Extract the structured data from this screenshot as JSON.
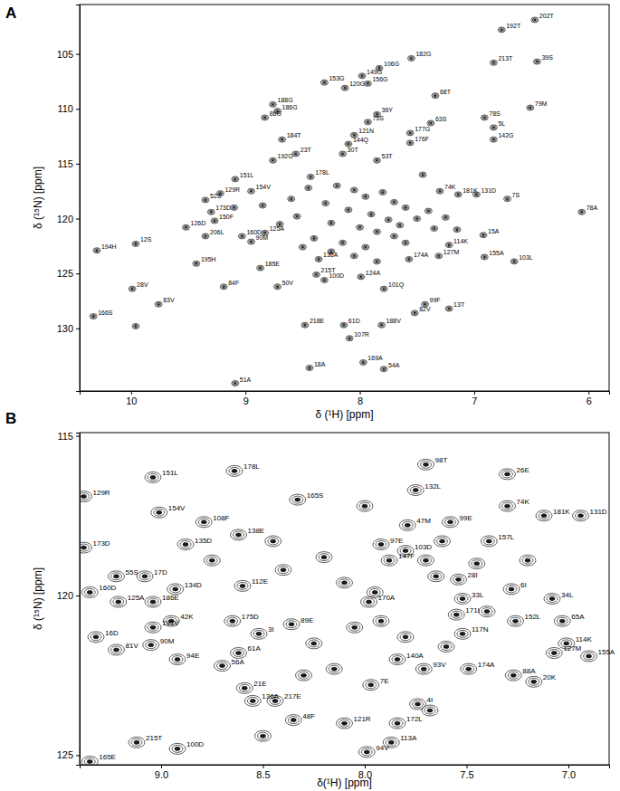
{
  "chart_data": [
    {
      "type": "scatter",
      "title": "A",
      "x_label": "δ (¹H) [ppm]",
      "y_label": "δ (¹⁵N) [ppm]",
      "marker": "contour",
      "color": "#1a1a1a",
      "xlim": [
        10.45,
        5.82
      ],
      "ylim": [
        100.5,
        135.7
      ],
      "xticks": [
        10,
        9,
        8,
        7,
        6
      ],
      "yticks": [
        105,
        110,
        115,
        120,
        125,
        130
      ],
      "x": [
        6.76,
        6.47,
        6.83,
        6.45,
        7.55,
        7.98,
        7.83,
        7.93,
        8.31,
        8.13,
        7.34,
        8.76,
        8.83,
        8.72,
        6.51,
        7.85,
        7.93,
        7.38,
        6.91,
        6.83,
        8.05,
        8.1,
        8.15,
        8.56,
        8.68,
        8.76,
        7.56,
        7.56,
        6.83,
        7.85,
        9.09,
        8.43,
        8.95,
        9.35,
        9.22,
        9.3,
        7.3,
        7.14,
        6.98,
        6.71,
        9.52,
        9.27,
        9.35,
        9.96,
        6.06,
        6.92,
        6.91,
        6.65,
        7.31,
        7.22,
        7.57,
        10.3,
        9.43,
        8.87,
        9.19,
        9.99,
        9.76,
        8.72,
        10.33,
        9.09,
        8.38,
        8.31,
        8.36,
        7.99,
        7.79,
        8.48,
        8.14,
        7.81,
        8.09,
        7.43,
        7.52,
        7.22,
        8.44,
        7.97,
        7.79,
        9.03,
        8.95,
        8.83,
        8.2,
        8.05,
        7.95,
        7.8,
        7.7,
        7.6,
        8.3,
        8.1,
        7.9,
        7.75,
        7.65,
        7.5,
        8.25,
        8.0,
        7.85,
        7.7,
        8.4,
        8.15,
        7.95,
        8.55,
        8.6,
        8.45,
        7.4,
        7.35,
        8.7,
        8.05,
        7.85,
        8.25,
        7.6,
        8.5,
        9.1,
        9.96,
        8.85,
        7.45,
        7.25,
        7.15
      ],
      "values": [
        102.8,
        101.9,
        105.8,
        105.7,
        105.4,
        107.0,
        106.3,
        107.7,
        107.6,
        108.1,
        108.8,
        109.6,
        110.8,
        110.2,
        109.9,
        110.5,
        111.2,
        111.3,
        110.8,
        111.7,
        112.4,
        113.2,
        114.1,
        114.1,
        112.8,
        114.7,
        112.2,
        113.1,
        112.8,
        114.7,
        116.4,
        116.2,
        117.5,
        118.3,
        117.7,
        119.4,
        117.5,
        117.8,
        117.8,
        118.2,
        120.8,
        120.2,
        121.6,
        122.3,
        119.4,
        121.5,
        123.5,
        123.9,
        123.4,
        122.4,
        123.7,
        122.9,
        124.1,
        124.5,
        126.2,
        126.4,
        127.8,
        126.2,
        128.9,
        135.0,
        125.1,
        125.6,
        123.7,
        125.3,
        126.4,
        129.7,
        129.7,
        129.7,
        130.9,
        127.8,
        128.6,
        128.2,
        133.6,
        133.1,
        133.7,
        121.6,
        122.1,
        121.3,
        117.0,
        117.4,
        118.0,
        117.6,
        118.5,
        119.0,
        118.6,
        119.2,
        119.6,
        120.1,
        120.6,
        120.0,
        120.4,
        120.8,
        121.2,
        121.6,
        121.8,
        122.2,
        122.6,
        119.8,
        118.2,
        117.2,
        119.3,
        120.9,
        120.5,
        123.4,
        123.9,
        123.0,
        122.2,
        122.6,
        119.0,
        129.8,
        118.8,
        116.0,
        119.9,
        121.0
      ],
      "labels": [
        "192T",
        "202T",
        "213T",
        "39S",
        "182G",
        "149G",
        "106G",
        "156G",
        "153G",
        "120G",
        "68T",
        "188G",
        "86G",
        "186G",
        "79M",
        "36Y",
        "75S",
        "63S",
        "78S",
        "5L",
        "121N",
        "144Q",
        "30T",
        "23T",
        "184T",
        "192G",
        "177G",
        "176F",
        "142G",
        "53T",
        "151L",
        "178L",
        "154V",
        "52S",
        "129R",
        "173D",
        "74K",
        "181K",
        "131D",
        "7S",
        "126D",
        "150F",
        "206L",
        "12S",
        "78A",
        "15A",
        "155A",
        "103L",
        "127M",
        "114K",
        "174A",
        "194H",
        "195H",
        "185E",
        "84F",
        "28V",
        "83V",
        "50V",
        "166S",
        "51A",
        "215T",
        "100D",
        "136A",
        "124A",
        "101Q",
        "218E",
        "61D",
        "188V",
        "107R",
        "99F",
        "82V",
        "13T",
        "18A",
        "169A",
        "54A",
        "160D",
        "90M",
        "125A",
        null,
        null,
        null,
        null,
        null,
        null,
        null,
        null,
        null,
        null,
        null,
        null,
        null,
        null,
        null,
        null,
        null,
        null,
        null,
        null,
        null,
        null,
        null,
        null,
        null,
        null,
        null,
        null,
        null,
        null,
        null,
        null,
        null,
        null,
        null,
        null
      ]
    },
    {
      "type": "scatter",
      "title": "B",
      "x_label": "δ(¹H) [ppm]",
      "y_label": "δ (¹⁵N) [ppm]",
      "marker": "contour",
      "color": "#1a1a1a",
      "xlim": [
        9.4,
        6.8
      ],
      "ylim": [
        114.9,
        125.3
      ],
      "xticks": [
        {
          "value": 9,
          "label": "9.0"
        },
        {
          "value": 8.5,
          "label": "8.5"
        },
        {
          "value": 8,
          "label": "8.0"
        },
        {
          "value": 7.5,
          "label": "7.5"
        },
        {
          "value": 7,
          "label": "7.0"
        }
      ],
      "yticks": [
        115,
        120,
        125
      ],
      "x": [
        9.04,
        8.64,
        7.7,
        7.3,
        9.38,
        9.01,
        8.33,
        7.75,
        7.3,
        7.12,
        6.94,
        8.79,
        8.62,
        8.88,
        9.38,
        9.22,
        9.08,
        8.93,
        8.6,
        9.04,
        9.21,
        9.35,
        8.95,
        9.04,
        9.32,
        9.22,
        9.05,
        8.92,
        8.7,
        8.62,
        8.52,
        8.65,
        8.36,
        8.59,
        8.55,
        8.44,
        8.35,
        7.97,
        8.1,
        7.84,
        7.87,
        7.99,
        7.74,
        7.71,
        7.49,
        7.27,
        7.17,
        7.07,
        7.01,
        6.9,
        7.26,
        7.03,
        7.28,
        7.08,
        7.52,
        7.55,
        7.52,
        7.54,
        7.39,
        7.58,
        7.79,
        7.8,
        7.92,
        7.88,
        7.98,
        7.84,
        9.12,
        8.92,
        9.35,
        8.2,
        8.1,
        7.95,
        7.7,
        7.65,
        7.62,
        8.05,
        7.92,
        7.8,
        8.25,
        8.15,
        7.6,
        8.4,
        8.3,
        7.45,
        7.4,
        8.75,
        8.45,
        7.2,
        8.0,
        7.68,
        8.5
      ],
      "values": [
        116.3,
        116.1,
        115.9,
        116.2,
        116.9,
        117.4,
        117.0,
        116.7,
        117.2,
        117.5,
        117.5,
        117.7,
        118.1,
        118.4,
        118.5,
        119.4,
        119.4,
        119.8,
        119.7,
        120.2,
        120.2,
        119.9,
        120.8,
        121.0,
        121.3,
        121.7,
        121.55,
        122.0,
        122.2,
        121.8,
        121.2,
        120.8,
        120.9,
        122.9,
        123.3,
        123.3,
        123.9,
        122.8,
        124.0,
        124.0,
        124.6,
        124.9,
        123.4,
        122.3,
        122.3,
        122.5,
        122.7,
        121.8,
        121.5,
        121.9,
        120.8,
        120.8,
        119.8,
        120.1,
        121.2,
        120.6,
        120.1,
        119.5,
        118.3,
        117.7,
        117.8,
        118.6,
        118.4,
        118.9,
        120.2,
        122.0,
        124.6,
        124.8,
        125.2,
        118.8,
        119.6,
        119.9,
        118.9,
        119.4,
        118.3,
        121.0,
        120.8,
        121.3,
        121.5,
        122.3,
        121.6,
        119.2,
        122.5,
        119.0,
        120.5,
        118.9,
        118.3,
        118.9,
        117.2,
        123.6,
        124.4
      ],
      "labels": [
        "151L",
        "178L",
        "98T",
        "26E",
        "129R",
        "154V",
        "165S",
        "132L",
        "74K",
        "181K",
        "131D",
        "108F",
        "138E",
        "135D",
        "173D",
        "55S",
        "17D",
        "134D",
        "112E",
        "186E",
        "125A",
        "160D",
        "42K",
        "191V",
        "16D",
        "81V",
        "90M",
        "94E",
        "56A",
        "61A",
        "3I",
        "175D",
        "89E",
        "21E",
        "136A",
        "217E",
        "48F",
        "7E",
        "121R",
        "172L",
        "113A",
        "94V",
        "4I",
        "93V",
        "174A",
        "88A",
        "20K",
        "127M",
        "114K",
        "155A",
        "152L",
        "65A",
        "6I",
        "34L",
        "117N",
        "171I",
        "33L",
        "28I",
        "157L",
        "99E",
        "47M",
        "103D",
        "97E",
        "147F",
        "170A",
        "140A",
        "215T",
        "100D",
        "165E",
        null,
        null,
        null,
        null,
        null,
        null,
        null,
        null,
        null,
        null,
        null,
        null,
        null,
        null,
        null,
        null,
        null,
        null,
        null,
        null,
        null,
        null
      ]
    }
  ]
}
